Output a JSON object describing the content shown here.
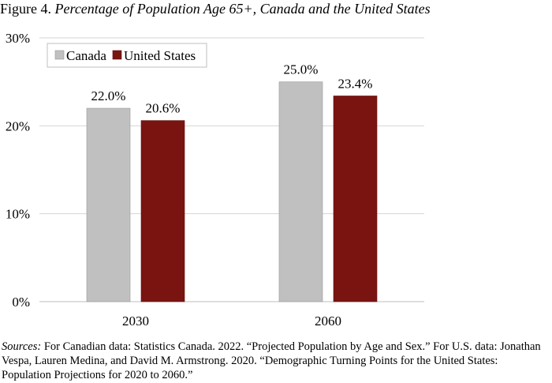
{
  "figure": {
    "label": "Figure 4.",
    "title": "Percentage of Population Age 65+, Canada and the United States"
  },
  "sources": {
    "label": "Sources:",
    "text": "For Canadian data: Statistics Canada. 2022. “Projected Population by Age and Sex.”  For U.S. data: Jonathan Vespa, Lauren Medina, and David M. Armstrong. 2020. “Demographic Turning Points for the United States: Population Projections for 2020 to 2060.”"
  },
  "chart_data": {
    "type": "bar",
    "title": "Percentage of Population Age 65+, Canada and the United States",
    "categories": [
      "2030",
      "2060"
    ],
    "series": [
      {
        "name": "Canada",
        "values": [
          22.0,
          25.0
        ],
        "labels": [
          "22.0%",
          "25.0%"
        ],
        "color": "#c0c0c0"
      },
      {
        "name": "United States",
        "values": [
          20.6,
          23.4
        ],
        "labels": [
          "20.6%",
          "23.4%"
        ],
        "color": "#7a1411"
      }
    ],
    "ylim": [
      0,
      30
    ],
    "yticks": [
      0,
      10,
      20,
      30
    ],
    "ytick_labels": [
      "0%",
      "10%",
      "20%",
      "30%"
    ],
    "grid": true,
    "legend": "top-left",
    "xlabel": "",
    "ylabel": ""
  }
}
